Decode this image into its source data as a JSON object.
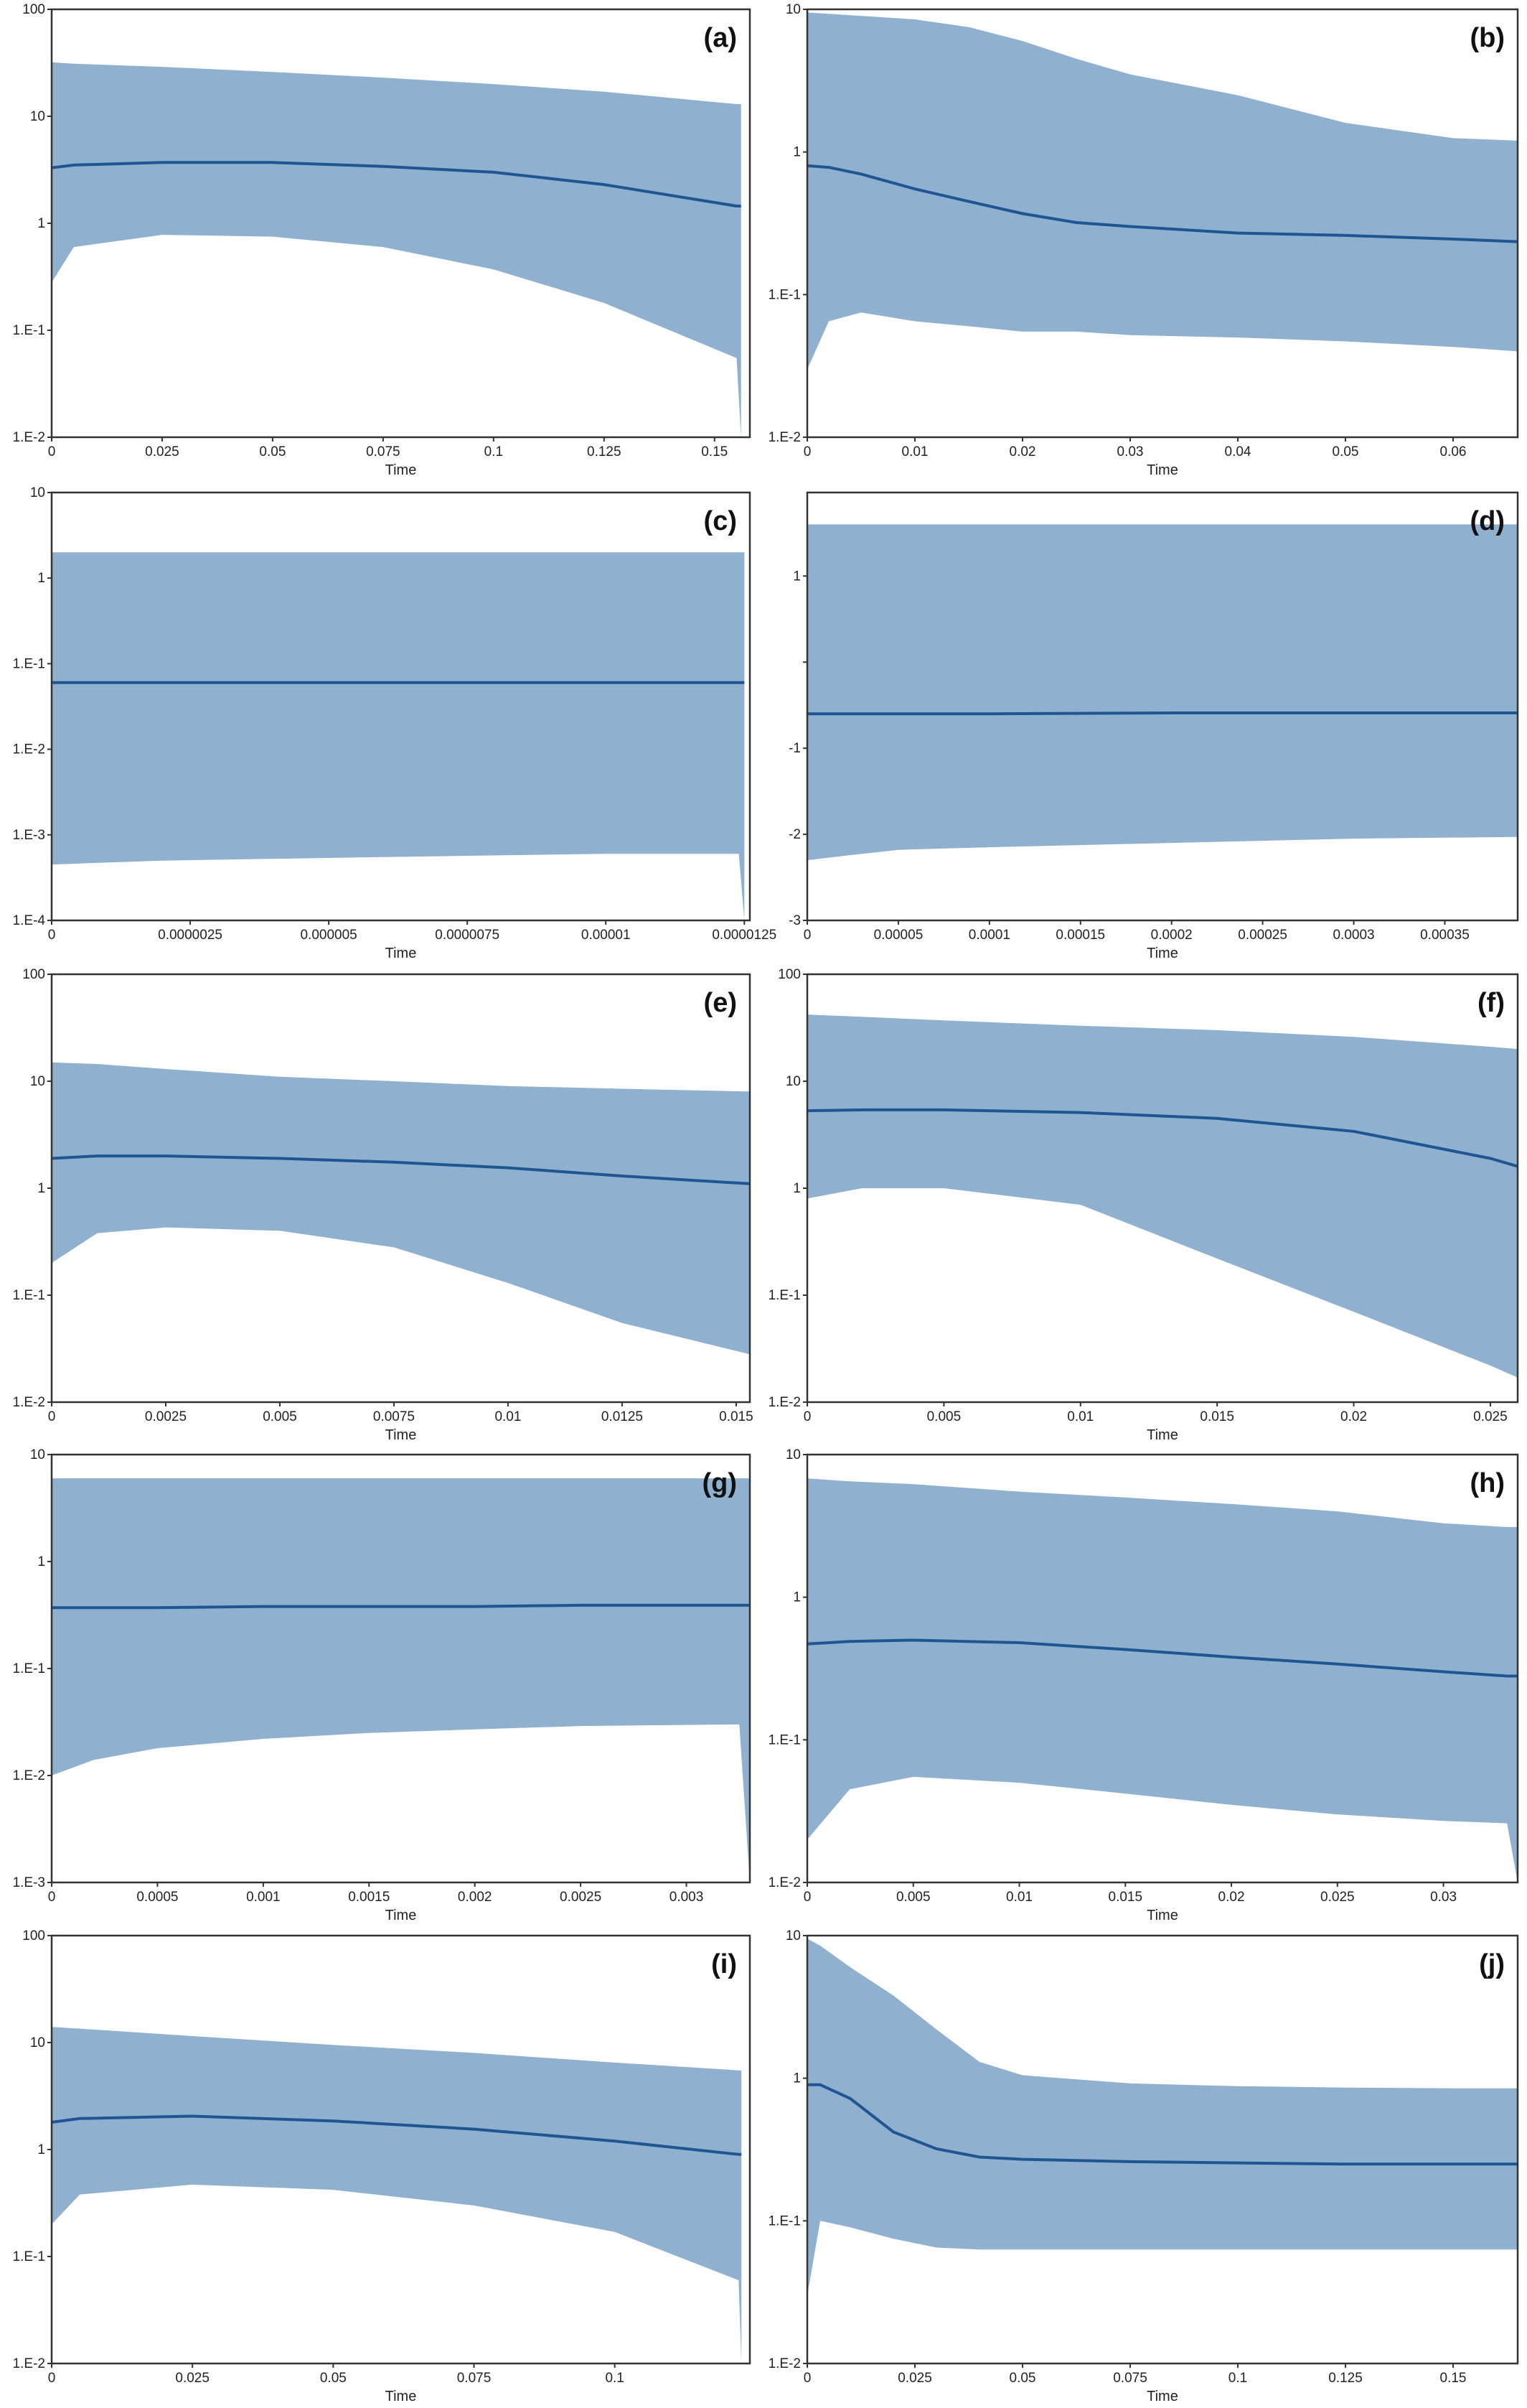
{
  "chart_data": [
    {
      "type": "area",
      "label": "(a)",
      "xlabel": "Time",
      "yscale": "log",
      "yticks": [
        0.01,
        0.1,
        1,
        10,
        100
      ],
      "yticklabels": [
        "1.E-2",
        "1.E-1",
        "1",
        "10",
        "100"
      ],
      "xlim": [
        0,
        0.158
      ],
      "xticks": [
        0,
        0.025,
        0.05,
        0.075,
        0.1,
        0.125,
        0.15
      ],
      "xticklabels": [
        "0",
        "0.025",
        "0.05",
        "0.075",
        "0.1",
        "0.125",
        "0.15"
      ],
      "x": [
        0,
        0.005,
        0.025,
        0.05,
        0.075,
        0.1,
        0.125,
        0.155,
        0.156
      ],
      "median": [
        3.3,
        3.5,
        3.7,
        3.7,
        3.4,
        3.0,
        2.3,
        1.45,
        1.45
      ],
      "upper": [
        32,
        31,
        29,
        26,
        23,
        20,
        17,
        13,
        13
      ],
      "lower": [
        0.28,
        0.6,
        0.78,
        0.75,
        0.6,
        0.37,
        0.18,
        0.055,
        0.01
      ]
    },
    {
      "type": "area",
      "label": "(b)",
      "xlabel": "Time",
      "yscale": "log",
      "yticks": [
        0.01,
        0.1,
        1,
        10
      ],
      "yticklabels": [
        "1.E-2",
        "1.E-1",
        "1",
        "10"
      ],
      "xlim": [
        0,
        0.066
      ],
      "xticks": [
        0,
        0.01,
        0.02,
        0.03,
        0.04,
        0.05,
        0.06
      ],
      "xticklabels": [
        "0",
        "0.01",
        "0.02",
        "0.03",
        "0.04",
        "0.05",
        "0.06"
      ],
      "x": [
        0,
        0.002,
        0.005,
        0.01,
        0.015,
        0.02,
        0.025,
        0.03,
        0.04,
        0.05,
        0.06,
        0.066
      ],
      "median": [
        0.8,
        0.78,
        0.7,
        0.55,
        0.45,
        0.37,
        0.32,
        0.3,
        0.27,
        0.26,
        0.245,
        0.235
      ],
      "upper": [
        9.5,
        9.3,
        9.0,
        8.5,
        7.5,
        6.0,
        4.5,
        3.5,
        2.5,
        1.6,
        1.25,
        1.2
      ],
      "lower": [
        0.03,
        0.065,
        0.075,
        0.065,
        0.06,
        0.055,
        0.055,
        0.052,
        0.05,
        0.047,
        0.043,
        0.04
      ]
    },
    {
      "type": "area",
      "label": "(c)",
      "xlabel": "Time",
      "yscale": "log",
      "yticks": [
        0.0001,
        0.001,
        0.01,
        0.1,
        1,
        10
      ],
      "yticklabels": [
        "1.E-4",
        "1.E-3",
        "1.E-2",
        "1.E-1",
        "1",
        "10"
      ],
      "xlim": [
        0,
        1.26e-05
      ],
      "xticks": [
        0,
        2.5e-06,
        5e-06,
        7.5e-06,
        1e-05,
        1.25e-05
      ],
      "xticklabels": [
        "0",
        "0.0000025",
        "0.000005",
        "0.0000075",
        "0.00001",
        "0.0000125"
      ],
      "x": [
        0,
        2e-06,
        6e-06,
        1e-05,
        1.24e-05,
        1.25e-05
      ],
      "median": [
        0.06,
        0.06,
        0.06,
        0.06,
        0.06,
        0.06
      ],
      "upper": [
        2.0,
        2.0,
        2.0,
        2.0,
        2.0,
        2.0
      ],
      "lower": [
        0.00045,
        0.0005,
        0.00055,
        0.0006,
        0.0006,
        0.0001
      ]
    },
    {
      "type": "area",
      "label": "(d)",
      "xlabel": "Time",
      "yscale": "linear",
      "yticks": [
        -3,
        -2,
        -1,
        0,
        1
      ],
      "yticklabels": [
        "-3",
        "-2",
        "-1",
        "",
        "1"
      ],
      "ylim": [
        -3,
        1.97
      ],
      "xlim": [
        0,
        0.00039
      ],
      "xticks": [
        0,
        5e-05,
        0.0001,
        0.00015,
        0.0002,
        0.00025,
        0.0003,
        0.00035
      ],
      "xticklabels": [
        "0",
        "0.00005",
        "0.0001",
        "0.00015",
        "0.0002",
        "0.00025",
        "0.0003",
        "0.00035"
      ],
      "x": [
        0,
        2e-05,
        5e-05,
        0.0001,
        0.0002,
        0.0003,
        0.00039
      ],
      "median": [
        -0.6,
        -0.6,
        -0.6,
        -0.6,
        -0.59,
        -0.59,
        -0.59
      ],
      "upper": [
        1.6,
        1.6,
        1.6,
        1.6,
        1.6,
        1.6,
        1.6
      ],
      "lower": [
        -2.3,
        -2.25,
        -2.18,
        -2.15,
        -2.1,
        -2.05,
        -2.03
      ]
    },
    {
      "type": "area",
      "label": "(e)",
      "xlabel": "Time",
      "yscale": "log",
      "yticks": [
        0.01,
        0.1,
        1,
        10,
        100
      ],
      "yticklabels": [
        "1.E-2",
        "1.E-1",
        "1",
        "10",
        "100"
      ],
      "xlim": [
        0,
        0.0153
      ],
      "xticks": [
        0,
        0.0025,
        0.005,
        0.0075,
        0.01,
        0.0125,
        0.015
      ],
      "xticklabels": [
        "0",
        "0.0025",
        "0.005",
        "0.0075",
        "0.01",
        "0.0125",
        "0.015"
      ],
      "x": [
        0,
        0.001,
        0.0025,
        0.005,
        0.0075,
        0.01,
        0.0125,
        0.0153
      ],
      "median": [
        1.9,
        2.0,
        2.0,
        1.9,
        1.75,
        1.55,
        1.3,
        1.1
      ],
      "upper": [
        15,
        14.5,
        13,
        11,
        10,
        9,
        8.5,
        8
      ],
      "lower": [
        0.2,
        0.38,
        0.43,
        0.4,
        0.28,
        0.13,
        0.055,
        0.028
      ]
    },
    {
      "type": "area",
      "label": "(f)",
      "xlabel": "Time",
      "yscale": "log",
      "yticks": [
        0.01,
        0.1,
        1,
        10,
        100
      ],
      "yticklabels": [
        "1.E-2",
        "1.E-1",
        "1",
        "10",
        "100"
      ],
      "xlim": [
        0,
        0.026
      ],
      "xticks": [
        0,
        0.005,
        0.01,
        0.015,
        0.02,
        0.025
      ],
      "xticklabels": [
        "0",
        "0.005",
        "0.01",
        "0.015",
        "0.02",
        "0.025"
      ],
      "x": [
        0,
        0.002,
        0.005,
        0.01,
        0.015,
        0.02,
        0.025,
        0.026
      ],
      "median": [
        5.3,
        5.4,
        5.4,
        5.1,
        4.5,
        3.4,
        1.9,
        1.6
      ],
      "upper": [
        42,
        40,
        37,
        33,
        30,
        26,
        21,
        20
      ],
      "lower": [
        0.8,
        1.0,
        1.0,
        0.7,
        0.22,
        0.07,
        0.022,
        0.017
      ]
    },
    {
      "type": "area",
      "label": "(g)",
      "xlabel": "Time",
      "yscale": "log",
      "yticks": [
        0.001,
        0.01,
        0.1,
        1,
        10
      ],
      "yticklabels": [
        "1.E-3",
        "1.E-2",
        "1.E-1",
        "1",
        "10"
      ],
      "xlim": [
        0,
        0.0033
      ],
      "xticks": [
        0,
        0.0005,
        0.001,
        0.0015,
        0.002,
        0.0025,
        0.003
      ],
      "xticklabels": [
        "0",
        "0.0005",
        "0.001",
        "0.0015",
        "0.002",
        "0.0025",
        "0.003"
      ],
      "x": [
        0,
        0.0002,
        0.0005,
        0.001,
        0.0015,
        0.002,
        0.0025,
        0.00325,
        0.0033
      ],
      "median": [
        0.37,
        0.37,
        0.37,
        0.38,
        0.38,
        0.38,
        0.39,
        0.39,
        0.39
      ],
      "upper": [
        6,
        6,
        6,
        6,
        6,
        6,
        6,
        6,
        6
      ],
      "lower": [
        0.01,
        0.014,
        0.018,
        0.022,
        0.025,
        0.027,
        0.029,
        0.03,
        0.001
      ]
    },
    {
      "type": "area",
      "label": "(h)",
      "xlabel": "Time",
      "yscale": "log",
      "yticks": [
        0.01,
        0.1,
        1,
        10
      ],
      "yticklabels": [
        "1.E-2",
        "1.E-1",
        "1",
        "10"
      ],
      "xlim": [
        0,
        0.0335
      ],
      "xticks": [
        0,
        0.005,
        0.01,
        0.015,
        0.02,
        0.025,
        0.03
      ],
      "xticklabels": [
        "0",
        "0.005",
        "0.01",
        "0.015",
        "0.02",
        "0.025",
        "0.03"
      ],
      "x": [
        0,
        0.002,
        0.005,
        0.01,
        0.015,
        0.02,
        0.025,
        0.03,
        0.033,
        0.0335
      ],
      "median": [
        0.47,
        0.49,
        0.5,
        0.48,
        0.43,
        0.38,
        0.34,
        0.3,
        0.28,
        0.28
      ],
      "upper": [
        6.8,
        6.5,
        6.2,
        5.5,
        5.0,
        4.5,
        4.0,
        3.3,
        3.1,
        3.1
      ],
      "lower": [
        0.02,
        0.045,
        0.055,
        0.05,
        0.042,
        0.035,
        0.03,
        0.027,
        0.026,
        0.01
      ]
    },
    {
      "type": "area",
      "label": "(i)",
      "xlabel": "Time",
      "yscale": "log",
      "yticks": [
        0.01,
        0.1,
        1,
        10,
        100
      ],
      "yticklabels": [
        "1.E-2",
        "1.E-1",
        "1",
        "10",
        "100"
      ],
      "xlim": [
        0,
        0.124
      ],
      "xticks": [
        0,
        0.025,
        0.05,
        0.075,
        0.1
      ],
      "xticklabels": [
        "0",
        "0.025",
        "0.05",
        "0.075",
        "0.1"
      ],
      "x": [
        0,
        0.005,
        0.025,
        0.05,
        0.075,
        0.1,
        0.122,
        0.1225
      ],
      "median": [
        1.8,
        1.95,
        2.05,
        1.85,
        1.55,
        1.2,
        0.9,
        0.9
      ],
      "upper": [
        14,
        13.5,
        11.5,
        9.5,
        8,
        6.5,
        5.5,
        5.5
      ],
      "lower": [
        0.2,
        0.38,
        0.47,
        0.42,
        0.3,
        0.17,
        0.06,
        0.01
      ]
    },
    {
      "type": "area",
      "label": "(j)",
      "xlabel": "Time",
      "yscale": "log",
      "yticks": [
        0.01,
        0.1,
        1,
        10
      ],
      "yticklabels": [
        "1.E-2",
        "1.E-1",
        "1",
        "10"
      ],
      "xlim": [
        0,
        0.165
      ],
      "xticks": [
        0,
        0.025,
        0.05,
        0.075,
        0.1,
        0.125,
        0.15
      ],
      "xticklabels": [
        "0",
        "0.025",
        "0.05",
        "0.075",
        "0.1",
        "0.125",
        "0.15"
      ],
      "x": [
        0,
        0.003,
        0.01,
        0.02,
        0.03,
        0.04,
        0.05,
        0.075,
        0.1,
        0.125,
        0.15,
        0.165
      ],
      "median": [
        0.9,
        0.9,
        0.72,
        0.42,
        0.32,
        0.28,
        0.27,
        0.26,
        0.255,
        0.25,
        0.25,
        0.25
      ],
      "upper": [
        9.5,
        8.5,
        6,
        3.8,
        2.2,
        1.3,
        1.05,
        0.92,
        0.88,
        0.86,
        0.85,
        0.85
      ],
      "lower": [
        0.03,
        0.1,
        0.09,
        0.075,
        0.065,
        0.063,
        0.063,
        0.063,
        0.063,
        0.063,
        0.063,
        0.063
      ]
    }
  ]
}
